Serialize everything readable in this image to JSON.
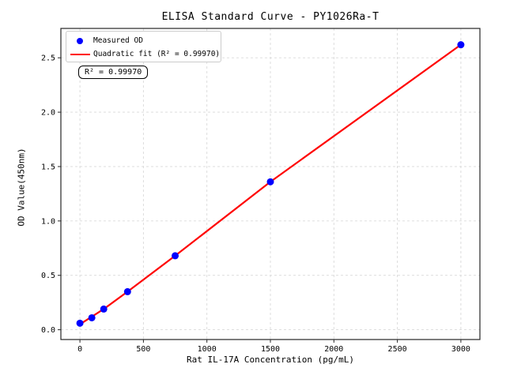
{
  "figure": {
    "background": "#ffffff"
  },
  "chart_data": {
    "type": "scatter",
    "title": "ELISA Standard Curve - PY1026Ra-T",
    "xlabel": "Rat IL-17A Concentration (pg/mL)",
    "ylabel": "OD Value(450nm)",
    "xlim": [
      -150,
      3150
    ],
    "ylim": [
      -0.09,
      2.77
    ],
    "x_ticks": {
      "values": [
        0,
        500,
        1000,
        1500,
        2000,
        2500,
        3000
      ],
      "labels": [
        "0",
        "500",
        "1000",
        "1500",
        "2000",
        "2500",
        "3000"
      ]
    },
    "y_ticks": {
      "values": [
        0.0,
        0.5,
        1.0,
        1.5,
        2.0,
        2.5
      ],
      "labels": [
        "0.0",
        "0.5",
        "1.0",
        "1.5",
        "2.0",
        "2.5"
      ]
    },
    "grid": {
      "show": true,
      "style": "dashed",
      "color": "#d9d9d9"
    },
    "legend_position": "upper-left",
    "legend": {
      "entries": [
        {
          "label": "Measured OD",
          "marker": "dot-icon",
          "color": "#0000ff"
        },
        {
          "label": "Quadratic fit (R² = 0.99970)",
          "marker": "line-icon",
          "color": "#ff0000"
        }
      ]
    },
    "annotation": {
      "text": "R² = 0.99970"
    },
    "series": [
      {
        "name": "Measured OD",
        "type": "scatter",
        "color": "#0000ff",
        "x": [
          0,
          93.75,
          187.5,
          375,
          750,
          1500,
          3000
        ],
        "y": [
          0.06,
          0.11,
          0.19,
          0.35,
          0.68,
          1.36,
          2.62
        ]
      },
      {
        "name": "Quadratic fit",
        "type": "line",
        "color": "#ff0000",
        "x": [
          0,
          93.75,
          187.5,
          375,
          750,
          1500,
          3000
        ],
        "y": [
          0.05,
          0.12,
          0.19,
          0.35,
          0.68,
          1.36,
          2.62
        ]
      }
    ],
    "colors": {
      "points": "#0000ff",
      "fit_line": "#ff0000",
      "axis": "#262626",
      "grid": "#d9d9d9"
    }
  }
}
